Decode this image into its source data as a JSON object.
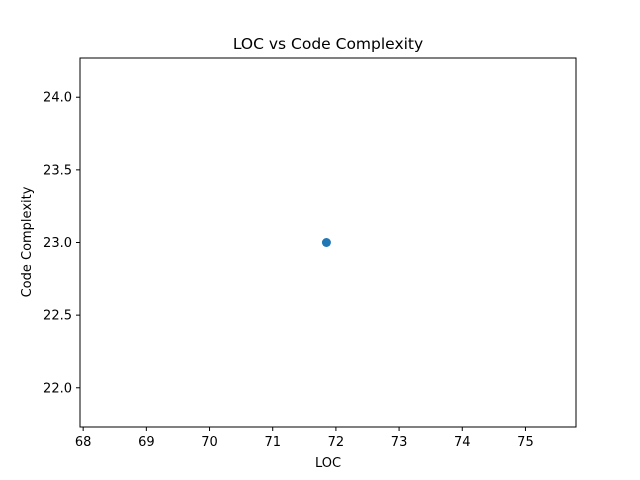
{
  "chart_data": {
    "type": "scatter",
    "title": "LOC vs Code Complexity",
    "xlabel": "LOC",
    "ylabel": "Code Complexity",
    "xlim": [
      67.95,
      75.8
    ],
    "ylim": [
      21.73,
      24.27
    ],
    "xticks": [
      68,
      69,
      70,
      71,
      72,
      73,
      74,
      75
    ],
    "yticks": [
      22.0,
      22.5,
      23.0,
      23.5,
      24.0
    ],
    "ytick_labels": [
      "22.0",
      "22.5",
      "23.0",
      "23.5",
      "24.0"
    ],
    "grid": false,
    "legend": false,
    "series": [
      {
        "color": "#1f77b4",
        "points": [
          {
            "x": 71.85,
            "y": 23.0
          }
        ]
      }
    ]
  }
}
